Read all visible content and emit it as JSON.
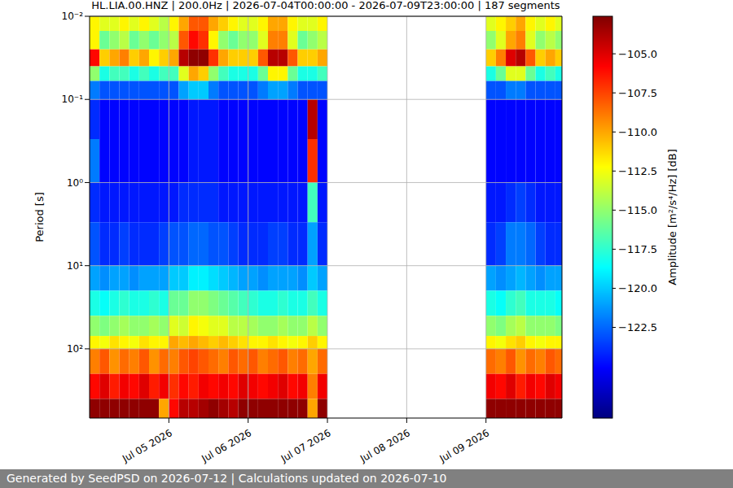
{
  "chart_data": {
    "type": "heatmap",
    "title": "HL.LIA.00.HNZ | 200.0Hz | 2026-07-04T00:00:00 - 2026-07-09T23:00:00 | 187 segments",
    "y_label": "Period [s]",
    "footer": "Generated by SeedPSD on 2026-07-12 | Calculations updated on 2026-07-10",
    "log": "y",
    "grid": true,
    "xlim": [
      "2026-07-04T00:00",
      "2026-07-09T23:00"
    ],
    "xticks": [
      {
        "value": "2026-07-05T00:00",
        "label": "Jul 05 2026"
      },
      {
        "value": "2026-07-06T00:00",
        "label": "Jul 06 2026"
      },
      {
        "value": "2026-07-07T00:00",
        "label": "Jul 07 2026"
      },
      {
        "value": "2026-07-08T00:00",
        "label": "Jul 08 2026"
      },
      {
        "value": "2026-07-09T00:00",
        "label": "Jul 09 2026"
      }
    ],
    "ylim": [
      0.01,
      680
    ],
    "yticks": [
      {
        "value": 0.01,
        "label": "10⁻²"
      },
      {
        "value": 0.1,
        "label": "10⁻¹"
      },
      {
        "value": 1,
        "label": "10⁰"
      },
      {
        "value": 10,
        "label": "10¹"
      },
      {
        "value": 100,
        "label": "10²"
      }
    ],
    "time_bins": [
      "2026-07-04T00:00",
      "2026-07-04T03:00",
      "2026-07-04T06:00",
      "2026-07-04T09:00",
      "2026-07-04T12:00",
      "2026-07-04T15:00",
      "2026-07-04T18:00",
      "2026-07-04T21:00",
      "2026-07-05T00:00",
      "2026-07-05T03:00",
      "2026-07-05T06:00",
      "2026-07-05T09:00",
      "2026-07-05T12:00",
      "2026-07-05T15:00",
      "2026-07-05T18:00",
      "2026-07-05T21:00",
      "2026-07-06T00:00",
      "2026-07-06T03:00",
      "2026-07-06T06:00",
      "2026-07-06T09:00",
      "2026-07-06T12:00",
      "2026-07-06T15:00",
      "2026-07-06T18:00",
      "2026-07-06T21:00",
      "2026-07-07T00:00",
      "2026-07-07T03:00",
      "2026-07-07T06:00",
      "2026-07-07T09:00",
      "2026-07-07T12:00",
      "2026-07-07T15:00",
      "2026-07-07T18:00",
      "2026-07-07T21:00",
      "2026-07-08T00:00",
      "2026-07-08T03:00",
      "2026-07-08T06:00",
      "2026-07-08T09:00",
      "2026-07-08T12:00",
      "2026-07-08T15:00",
      "2026-07-08T18:00",
      "2026-07-08T21:00",
      "2026-07-09T00:00",
      "2026-07-09T03:00",
      "2026-07-09T06:00",
      "2026-07-09T09:00",
      "2026-07-09T12:00",
      "2026-07-09T15:00",
      "2026-07-09T18:00",
      "2026-07-09T21:00",
      "2026-07-09T23:00"
    ],
    "period_bins": [
      0.01,
      0.015,
      0.025,
      0.04,
      0.06,
      0.1,
      0.3,
      1,
      3,
      10,
      20,
      40,
      70,
      100,
      200,
      400,
      680
    ],
    "cells": [
      [
        -112,
        -113,
        -113,
        -112,
        -113,
        -112,
        -113,
        -114,
        -112,
        -110,
        -108,
        -108,
        -110,
        -111,
        -112,
        -113,
        -113,
        -112,
        -110,
        -110,
        -112,
        -113,
        -113,
        -112,
        null,
        null,
        null,
        null,
        null,
        null,
        null,
        null,
        null,
        null,
        null,
        null,
        null,
        null,
        null,
        null,
        -113,
        -112,
        -111,
        -110,
        -112,
        -113,
        -112,
        -113
      ],
      [
        -112,
        -116,
        -115,
        -114,
        -116,
        -115,
        -116,
        -115,
        -114,
        -108,
        -106,
        -107,
        -112,
        -115,
        -116,
        -115,
        -115,
        -113,
        -109,
        -109,
        -113,
        -116,
        -115,
        -114,
        null,
        null,
        null,
        null,
        null,
        null,
        null,
        null,
        null,
        null,
        null,
        null,
        null,
        null,
        null,
        null,
        -115,
        -113,
        -110,
        -109,
        -113,
        -115,
        -114,
        -115
      ],
      [
        -106,
        -111,
        -110,
        -109,
        -111,
        -110,
        -112,
        -111,
        -110,
        -104,
        -103,
        -103,
        -107,
        -110,
        -111,
        -111,
        -111,
        -108,
        -104,
        -104,
        -108,
        -111,
        -111,
        -110,
        null,
        null,
        null,
        null,
        null,
        null,
        null,
        null,
        null,
        null,
        null,
        null,
        null,
        null,
        null,
        null,
        -111,
        -109,
        -105,
        -104,
        -108,
        -111,
        -110,
        -111
      ],
      [
        -115,
        -118,
        -117,
        -117,
        -118,
        -117,
        -118,
        -117,
        -117,
        -113,
        -110,
        -111,
        -115,
        -117,
        -118,
        -118,
        -118,
        -116,
        -112,
        -112,
        -116,
        -118,
        -118,
        -117,
        null,
        null,
        null,
        null,
        null,
        null,
        null,
        null,
        null,
        null,
        null,
        null,
        null,
        null,
        null,
        null,
        -118,
        -116,
        -113,
        -113,
        -116,
        -118,
        -117,
        -118
      ],
      [
        -122,
        -123,
        -123,
        -123,
        -123,
        -123,
        -123,
        -123,
        -123,
        -121,
        -120,
        -120,
        -122,
        -123,
        -123,
        -123,
        -123,
        -122,
        -121,
        -121,
        -122,
        -123,
        -123,
        -123,
        null,
        null,
        null,
        null,
        null,
        null,
        null,
        null,
        null,
        null,
        null,
        null,
        null,
        null,
        null,
        null,
        -123,
        -123,
        -122,
        -122,
        -123,
        -123,
        -123,
        -123
      ],
      [
        -124,
        -125,
        -125,
        -125,
        -125,
        -125,
        -125,
        -125,
        -125,
        -125,
        -124.5,
        -124.5,
        -124.5,
        -125,
        -125,
        -125,
        -125,
        -125,
        -125,
        -125,
        -125,
        -125,
        -104,
        -125,
        null,
        null,
        null,
        null,
        null,
        null,
        null,
        null,
        null,
        null,
        null,
        null,
        null,
        null,
        null,
        null,
        -125,
        -125,
        -125,
        -125,
        -125,
        -125,
        -125,
        -125
      ],
      [
        -122,
        -125,
        -125,
        -125,
        -125,
        -125,
        -125,
        -125,
        -125,
        -125,
        -124.5,
        -124.5,
        -124.5,
        -125,
        -125,
        -125,
        -125,
        -125,
        -125,
        -125,
        -125,
        -125,
        -107,
        -125,
        null,
        null,
        null,
        null,
        null,
        null,
        null,
        null,
        null,
        null,
        null,
        null,
        null,
        null,
        null,
        null,
        -125,
        -125,
        -125,
        -125,
        -125,
        -125,
        -125,
        -125
      ],
      [
        -124,
        -124.5,
        -124.5,
        -124.5,
        -124.5,
        -124.5,
        -124.5,
        -124.5,
        -124.5,
        -124,
        -124,
        -124,
        -124,
        -124.5,
        -124.5,
        -124.5,
        -124.5,
        -124.5,
        -124.5,
        -124.5,
        -124.5,
        -124.5,
        -117,
        -124.5,
        null,
        null,
        null,
        null,
        null,
        null,
        null,
        null,
        null,
        null,
        null,
        null,
        null,
        null,
        null,
        null,
        -124.5,
        -124.5,
        -124,
        -123.5,
        -124,
        -124.5,
        -124.5,
        -124.5
      ],
      [
        -123,
        -124,
        -124,
        -123.5,
        -124,
        -124,
        -124,
        -123.5,
        -123,
        -123,
        -122.5,
        -122.5,
        -123,
        -123,
        -123.5,
        -124,
        -124,
        -124,
        -123.5,
        -123.5,
        -124,
        -124,
        -121,
        -124,
        null,
        null,
        null,
        null,
        null,
        null,
        null,
        null,
        null,
        null,
        null,
        null,
        null,
        null,
        null,
        null,
        -124,
        -123.5,
        -122,
        -122,
        -122.5,
        -123.5,
        -124,
        -124
      ],
      [
        -121,
        -121.5,
        -121,
        -121,
        -121.5,
        -121,
        -121,
        -121,
        -120,
        -120,
        -119,
        -119,
        -119.5,
        -120,
        -120.5,
        -121,
        -121,
        -121.5,
        -121,
        -121,
        -121,
        -121.5,
        -120,
        -121,
        null,
        null,
        null,
        null,
        null,
        null,
        null,
        null,
        null,
        null,
        null,
        null,
        null,
        null,
        null,
        null,
        -121,
        -121.5,
        -121,
        -120.5,
        -121,
        -121.5,
        -121,
        -121
      ],
      [
        -118,
        -118.5,
        -118,
        -117.5,
        -118,
        -118,
        -117.5,
        -118,
        -116,
        -116,
        -115,
        -115,
        -115.5,
        -116,
        -116.5,
        -117,
        -117.5,
        -118,
        -118,
        -117.5,
        -118,
        -118,
        -117,
        -118,
        null,
        null,
        null,
        null,
        null,
        null,
        null,
        null,
        null,
        null,
        null,
        null,
        null,
        null,
        null,
        null,
        -118,
        -118.5,
        -117.5,
        -117,
        -118,
        -118,
        -118,
        -118.5
      ],
      [
        -115,
        -115.5,
        -115,
        -114.5,
        -115,
        -115,
        -114.5,
        -115,
        -113,
        -113.5,
        -112,
        -112.5,
        -113,
        -113,
        -114,
        -114,
        -114.5,
        -115,
        -115,
        -114.5,
        -115,
        -115,
        -114,
        -115,
        null,
        null,
        null,
        null,
        null,
        null,
        null,
        null,
        null,
        null,
        null,
        null,
        null,
        null,
        null,
        null,
        -115,
        -115.5,
        -114.5,
        -114,
        -115,
        -115,
        -115,
        -115.5
      ],
      [
        -112,
        -112.5,
        -111.5,
        -112,
        -112.5,
        -111.5,
        -112,
        -112,
        -110,
        -110.5,
        -110,
        -110.5,
        -111,
        -110.5,
        -111,
        -111.5,
        -112,
        -112,
        -111.5,
        -112,
        -112.5,
        -112,
        -111,
        -112,
        null,
        null,
        null,
        null,
        null,
        null,
        null,
        null,
        null,
        null,
        null,
        null,
        null,
        null,
        null,
        null,
        -112,
        -112.5,
        -111.5,
        -111,
        -112,
        -112.5,
        -112,
        -112
      ],
      [
        -109,
        -108,
        -109.5,
        -108.5,
        -109,
        -108,
        -109.5,
        -108.5,
        -109,
        -108,
        -107.5,
        -108,
        -108.5,
        -109,
        -108,
        -108.5,
        -108,
        -109,
        -108.5,
        -108,
        -109,
        -108.5,
        -110,
        -108.5,
        null,
        null,
        null,
        null,
        null,
        null,
        null,
        null,
        null,
        null,
        null,
        null,
        null,
        null,
        null,
        null,
        -108.5,
        -109,
        -108,
        -109.5,
        -108.5,
        -109,
        -108,
        -108.5
      ],
      [
        -106,
        -105,
        -106.5,
        -105.5,
        -106,
        -105,
        -106.5,
        -105.5,
        -107,
        -106,
        -106.5,
        -105.5,
        -106,
        -105.5,
        -106,
        -105,
        -105.5,
        -106,
        -105.5,
        -105,
        -106,
        -105.5,
        -109,
        -105.5,
        null,
        null,
        null,
        null,
        null,
        null,
        null,
        null,
        null,
        null,
        null,
        null,
        null,
        null,
        null,
        null,
        -105.5,
        -106,
        -105,
        -106.5,
        -105.5,
        -106,
        -105,
        -105.5
      ],
      [
        -103,
        -103,
        -103,
        -103,
        -103,
        -103,
        -103,
        -110,
        -106,
        -104,
        -104,
        -103.5,
        -103,
        -103.5,
        -104,
        -103,
        -103,
        -103,
        -103,
        -103,
        -103,
        -103,
        -110,
        -103,
        null,
        null,
        null,
        null,
        null,
        null,
        null,
        null,
        null,
        null,
        null,
        null,
        null,
        null,
        null,
        null,
        -103,
        -103,
        -103,
        -103,
        -103,
        -103,
        -103,
        -103
      ]
    ],
    "colorbar": {
      "label": "Amplitude [m²/s⁴/Hz] [dB]",
      "range": [
        -128.3,
        -102.6
      ],
      "ticks": [
        {
          "value": -105,
          "label": "−105.0"
        },
        {
          "value": -107.5,
          "label": "−107.5"
        },
        {
          "value": -110,
          "label": "−110.0"
        },
        {
          "value": -112.5,
          "label": "−112.5"
        },
        {
          "value": -115,
          "label": "−115.0"
        },
        {
          "value": -117.5,
          "label": "−117.5"
        },
        {
          "value": -120,
          "label": "−120.0"
        },
        {
          "value": -122.5,
          "label": "−122.5"
        }
      ]
    }
  }
}
